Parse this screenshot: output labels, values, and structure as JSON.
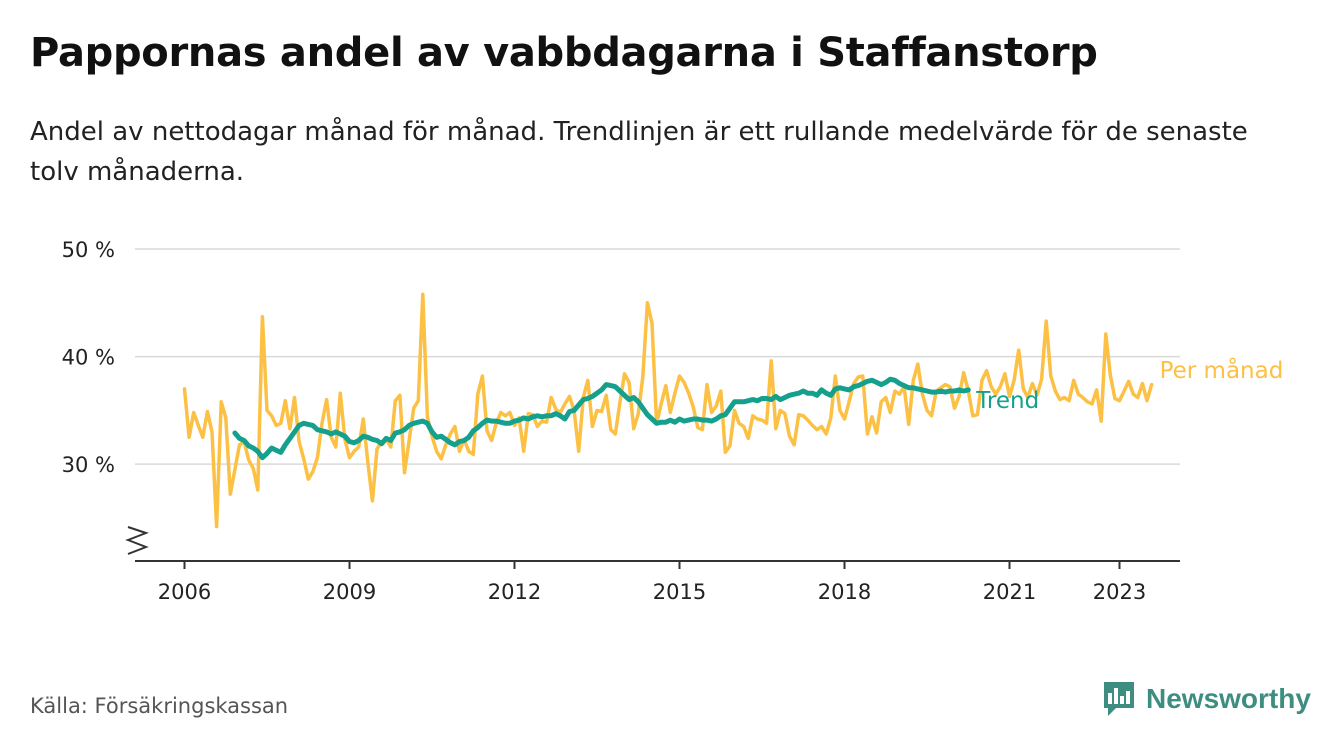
{
  "header": {
    "title": "Pappornas andel av vabbdagarna i Staffanstorp",
    "subtitle": "Andel av nettodagar månad för månad. Trendlinjen är ett rullande medelvärde för de senaste tolv månaderna."
  },
  "footer": {
    "source": "Källa: Försäkringskassan",
    "brand": "Newsworthy"
  },
  "colors": {
    "monthly": "#fcc044",
    "trend": "#14a08d",
    "grid": "#d9d9d9",
    "axis": "#333333",
    "brand": "#3d8d80"
  },
  "chart_data": {
    "type": "line",
    "x_start": "2006-01",
    "x_end": "2023-05",
    "xlim": [
      2005.1,
      2024.1
    ],
    "ylim": [
      21,
      50
    ],
    "yticks": [
      30,
      40,
      50
    ],
    "ytick_labels": [
      "30 %",
      "40 %",
      "50 %"
    ],
    "xticks": [
      2006,
      2009,
      2012,
      2015,
      2018,
      2021,
      2023
    ],
    "xtick_labels": [
      "2006",
      "2009",
      "2012",
      "2015",
      "2018",
      "2021",
      "2023"
    ],
    "axis_break": true,
    "grid": true,
    "series": [
      {
        "name": "Per månad",
        "color": "#fcc044",
        "values": [
          37.0,
          32.5,
          34.8,
          33.6,
          32.5,
          34.9,
          33.0,
          24.2,
          35.8,
          34.3,
          27.2,
          29.5,
          31.8,
          32.1,
          30.4,
          29.6,
          27.6,
          43.7,
          35.0,
          34.5,
          33.6,
          33.8,
          35.9,
          33.3,
          36.2,
          32.1,
          30.5,
          28.6,
          29.3,
          30.6,
          33.8,
          36.0,
          32.5,
          31.6,
          36.6,
          32.3,
          30.6,
          31.2,
          31.6,
          34.2,
          30.2,
          26.6,
          31.4,
          32.1,
          32.3,
          31.6,
          35.9,
          36.4,
          29.2,
          32.2,
          35.2,
          35.9,
          45.8,
          34.4,
          32.6,
          31.2,
          30.5,
          31.8,
          32.8,
          33.5,
          31.2,
          32.3,
          31.2,
          30.9,
          36.5,
          38.2,
          33.1,
          32.2,
          33.8,
          34.8,
          34.5,
          34.8,
          33.6,
          34.3,
          31.2,
          34.7,
          34.6,
          33.5,
          34.0,
          33.9,
          36.2,
          35.1,
          34.8,
          35.6,
          36.3,
          35.0,
          31.2,
          36.2,
          37.8,
          33.5,
          35.0,
          34.9,
          36.4,
          33.2,
          32.8,
          35.7,
          38.4,
          37.6,
          33.3,
          34.7,
          38.1,
          45.0,
          43.1,
          33.8,
          35.6,
          37.3,
          34.8,
          36.6,
          38.2,
          37.6,
          36.6,
          35.3,
          33.4,
          33.2,
          37.4,
          34.8,
          35.4,
          36.8,
          31.1,
          31.7,
          35.0,
          33.8,
          33.5,
          32.4,
          34.5,
          34.2,
          34.1,
          33.8,
          39.6,
          33.3,
          35.0,
          34.7,
          32.6,
          31.8,
          34.6,
          34.5,
          34.1,
          33.6,
          33.2,
          33.5,
          32.8,
          34.3,
          38.2,
          35.0,
          34.2,
          35.8,
          37.5,
          38.1,
          38.2,
          32.8,
          34.4,
          32.9,
          35.8,
          36.2,
          34.8,
          36.8,
          36.5,
          37.2,
          33.7,
          37.8,
          39.3,
          36.5,
          35.0,
          34.5,
          36.8,
          37.1,
          37.4,
          37.2,
          35.2,
          36.3,
          38.5,
          36.8,
          34.5,
          34.6,
          37.8,
          38.7,
          37.2,
          36.5,
          37.2,
          38.4,
          36.3,
          37.8,
          40.6,
          37.0,
          36.2,
          37.5,
          36.4,
          37.9,
          43.3,
          38.2,
          36.8,
          36.0,
          36.2,
          35.9,
          37.8,
          36.5,
          36.2,
          35.8,
          35.6,
          36.9,
          34.0,
          42.1,
          38.3,
          36.1,
          35.9,
          36.8,
          37.7,
          36.5,
          36.2,
          37.5,
          35.9,
          37.4
        ]
      },
      {
        "name": "Trend",
        "color": "#14a08d",
        "start": "2006-12",
        "values": [
          32.9,
          32.4,
          32.2,
          31.7,
          31.5,
          31.2,
          30.6,
          31.0,
          31.5,
          31.3,
          31.1,
          31.8,
          32.4,
          33.0,
          33.6,
          33.8,
          33.7,
          33.6,
          33.2,
          33.1,
          33.0,
          32.8,
          33.0,
          32.8,
          32.6,
          32.1,
          32.0,
          32.2,
          32.6,
          32.5,
          32.3,
          32.2,
          31.9,
          32.4,
          32.2,
          32.9,
          33.0,
          33.2,
          33.6,
          33.8,
          33.9,
          34.0,
          33.8,
          33.0,
          32.5,
          32.6,
          32.3,
          32.0,
          31.8,
          32.1,
          32.2,
          32.5,
          33.1,
          33.4,
          33.8,
          34.1,
          34.0,
          34.0,
          33.9,
          33.8,
          33.8,
          34.0,
          34.1,
          34.3,
          34.2,
          34.4,
          34.5,
          34.4,
          34.5,
          34.5,
          34.7,
          34.5,
          34.2,
          34.9,
          35.0,
          35.5,
          36.0,
          36.1,
          36.3,
          36.6,
          36.9,
          37.4,
          37.3,
          37.2,
          36.8,
          36.4,
          36.0,
          36.2,
          35.8,
          35.2,
          34.6,
          34.2,
          33.8,
          33.9,
          33.9,
          34.1,
          33.9,
          34.2,
          34.0,
          34.1,
          34.2,
          34.2,
          34.1,
          34.1,
          34.0,
          34.2,
          34.5,
          34.6,
          35.2,
          35.8,
          35.8,
          35.8,
          35.9,
          36.0,
          35.9,
          36.1,
          36.1,
          36.0,
          36.3,
          36.0,
          36.2,
          36.4,
          36.5,
          36.6,
          36.8,
          36.6,
          36.6,
          36.4,
          36.9,
          36.6,
          36.4,
          37.0,
          37.1,
          37.0,
          36.9,
          37.2,
          37.3,
          37.5,
          37.7,
          37.8,
          37.6,
          37.4,
          37.6,
          37.9,
          37.8,
          37.5,
          37.3,
          37.1,
          37.1,
          37.0,
          36.9,
          36.8,
          36.7,
          36.7,
          36.8,
          36.7,
          36.8,
          36.8,
          36.9,
          36.8,
          36.9
        ]
      }
    ]
  }
}
